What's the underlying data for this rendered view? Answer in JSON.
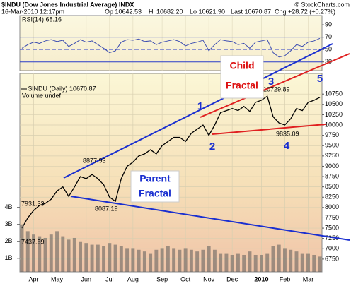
{
  "header": {
    "symbol": "$INDU (Dow Jones Industrial Average) INDX",
    "copyright": "© StockCharts.com",
    "datetime": "16-Mar-2010 12:17pm",
    "open": "Op 10642.53",
    "high": "Hi 10682.20",
    "low": "Lo 10621.90",
    "last": "Last 10670.87",
    "change": "Chg +28.72 (+0.27%)"
  },
  "annotations": {
    "child": [
      "Child",
      "Fractal"
    ],
    "parent": [
      "Parent",
      "Fractal"
    ],
    "waves": [
      "1",
      "2",
      "3",
      "4",
      "5"
    ],
    "price_labels": [
      "7931.33",
      "7437.59",
      "8877.93",
      "8087.19",
      "10729.89",
      "9835.09"
    ]
  },
  "chart_data": [
    {
      "type": "line",
      "title": "RSI(14) 68.16",
      "color": "#3a4bb0",
      "values": [
        52,
        58,
        62,
        60,
        64,
        66,
        63,
        65,
        55,
        60,
        66,
        62,
        64,
        58,
        52,
        45,
        48,
        62,
        66,
        65,
        67,
        63,
        64,
        58,
        62,
        64,
        66,
        63,
        56,
        60,
        62,
        65,
        48,
        58,
        66,
        64,
        63,
        58,
        60,
        52,
        62,
        64,
        66,
        45,
        38,
        40,
        48,
        58,
        55,
        62,
        64,
        68.16
      ],
      "ylim": [
        16,
        105
      ],
      "yticks": [
        30,
        50,
        70,
        90
      ],
      "bands": [
        30,
        70
      ]
    },
    {
      "type": "line",
      "title": "$INDU (Daily) 10670.87",
      "color": "#000000",
      "categories": [
        null,
        null,
        "Apr",
        null,
        null,
        null,
        "May",
        null,
        null,
        null,
        null,
        "Jun",
        null,
        null,
        null,
        "Jul",
        null,
        null,
        null,
        "Aug",
        null,
        null,
        null,
        null,
        "Sep",
        null,
        null,
        null,
        "Oct",
        null,
        null,
        null,
        "Nov",
        null,
        null,
        null,
        "Dec",
        null,
        null,
        null,
        null,
        "2010",
        null,
        null,
        null,
        "Feb",
        null,
        null,
        null,
        "Mar",
        null,
        null
      ],
      "values": [
        7500,
        7750,
        7930,
        8050,
        8100,
        8200,
        8400,
        8500,
        8270,
        8500,
        8750,
        8700,
        8800,
        8700,
        8550,
        8250,
        8150,
        8700,
        9000,
        9100,
        9250,
        9300,
        9400,
        9300,
        9500,
        9600,
        9700,
        9700,
        9600,
        9800,
        9900,
        10000,
        9750,
        10000,
        10300,
        10350,
        10400,
        10350,
        10450,
        10330,
        10550,
        10600,
        10700,
        10200,
        10050,
        10000,
        10150,
        10400,
        10350,
        10550,
        10600,
        10670.87
      ],
      "ylim": [
        6440,
        11250
      ],
      "yticks": [
        6750,
        7000,
        7250,
        7500,
        7750,
        8000,
        8250,
        8500,
        8750,
        9000,
        9250,
        9500,
        9750,
        10000,
        10250,
        10500,
        10750
      ],
      "grid": true
    },
    {
      "type": "bar",
      "title": "Volume undef",
      "color": "#5a5a5a",
      "values": [
        3.0,
        2.6,
        2.4,
        2.3,
        2.2,
        2.4,
        2.6,
        2.3,
        2.1,
        2.2,
        2.0,
        1.9,
        1.8,
        1.8,
        1.7,
        1.9,
        1.8,
        1.7,
        1.6,
        1.6,
        1.5,
        1.4,
        1.3,
        1.5,
        1.6,
        1.7,
        1.6,
        1.5,
        1.6,
        1.5,
        1.4,
        1.5,
        1.7,
        1.5,
        1.3,
        1.3,
        1.2,
        1.3,
        1.2,
        1.4,
        1.2,
        1.2,
        1.3,
        1.7,
        1.8,
        1.6,
        1.5,
        1.4,
        1.3,
        1.3,
        1.2,
        1.1
      ],
      "ylim": [
        0.2,
        11.9
      ],
      "yticks": [
        {
          "value": 1,
          "label": "1B"
        },
        {
          "value": 2,
          "label": "2B"
        },
        {
          "value": 3,
          "label": "3B"
        },
        {
          "value": 4,
          "label": "4B"
        }
      ]
    }
  ]
}
